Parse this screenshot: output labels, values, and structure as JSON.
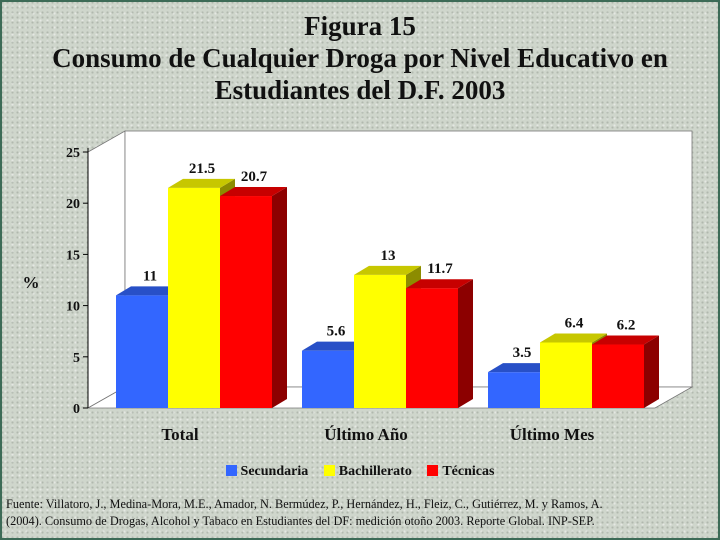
{
  "title": {
    "line1": "Figura 15",
    "line2": "Consumo de Cualquier Droga por Nivel Educativo en",
    "line3": "Estudiantes del D.F. 2003"
  },
  "source_note": {
    "line1": "Fuente: Villatoro, J., Medina-Mora, M.E., Amador, N. Bermúdez, P., Hernández, H., Fleiz, C., Gutiérrez, M. y Ramos, A.",
    "line2": "(2004). Consumo de Drogas, Alcohol y Tabaco en Estudiantes del DF: medición otoño 2003. Reporte Global. INP-SEP."
  },
  "chart_data": {
    "type": "bar",
    "title": "Figura 15 Consumo de Cualquier Droga por Nivel Educativo en Estudiantes del D.F. 2003",
    "ylabel": "%",
    "xlabel": "",
    "ylim": [
      0,
      25
    ],
    "yticks": [
      0,
      5,
      10,
      15,
      20,
      25
    ],
    "grid": false,
    "legend_position": "bottom",
    "categories": [
      "Total",
      "Último Año",
      "Último Mes"
    ],
    "series": [
      {
        "name": "Secundaria",
        "values": [
          11,
          5.6,
          3.5
        ],
        "color": "#3366ff"
      },
      {
        "name": "Bachillerato",
        "values": [
          21.5,
          13,
          6.4
        ],
        "color": "#ffff00"
      },
      {
        "name": "Técnicas",
        "values": [
          20.7,
          11.7,
          6.2
        ],
        "color": "#ff0000"
      }
    ]
  }
}
